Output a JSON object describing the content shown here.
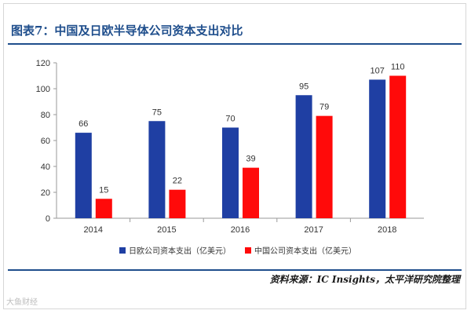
{
  "header": {
    "title": "图表7：中国及日欧半导体公司资本支出对比"
  },
  "footer": {
    "source": "资料来源：IC Insights，太平洋研究院整理",
    "watermark": "大鱼财经"
  },
  "colors": {
    "brand": "#1f4e8c",
    "series_jp_eu": "#1f3fa3",
    "series_china": "#ff0a0a"
  },
  "chart_data": {
    "type": "bar",
    "title": "",
    "xlabel": "",
    "ylabel": "",
    "categories": [
      "2014",
      "2015",
      "2016",
      "2017",
      "2018"
    ],
    "series": [
      {
        "name": "日欧公司资本支出（亿美元）",
        "values": [
          66,
          75,
          70,
          95,
          107
        ],
        "color": "#1f3fa3"
      },
      {
        "name": "中国公司资本支出（亿美元）",
        "values": [
          15,
          22,
          39,
          79,
          110
        ],
        "color": "#ff0a0a"
      }
    ],
    "ylim": [
      0,
      120
    ],
    "yticks": [
      0,
      20,
      40,
      60,
      80,
      100,
      120
    ],
    "grid": false,
    "legend_position": "bottom",
    "data_labels": true
  }
}
